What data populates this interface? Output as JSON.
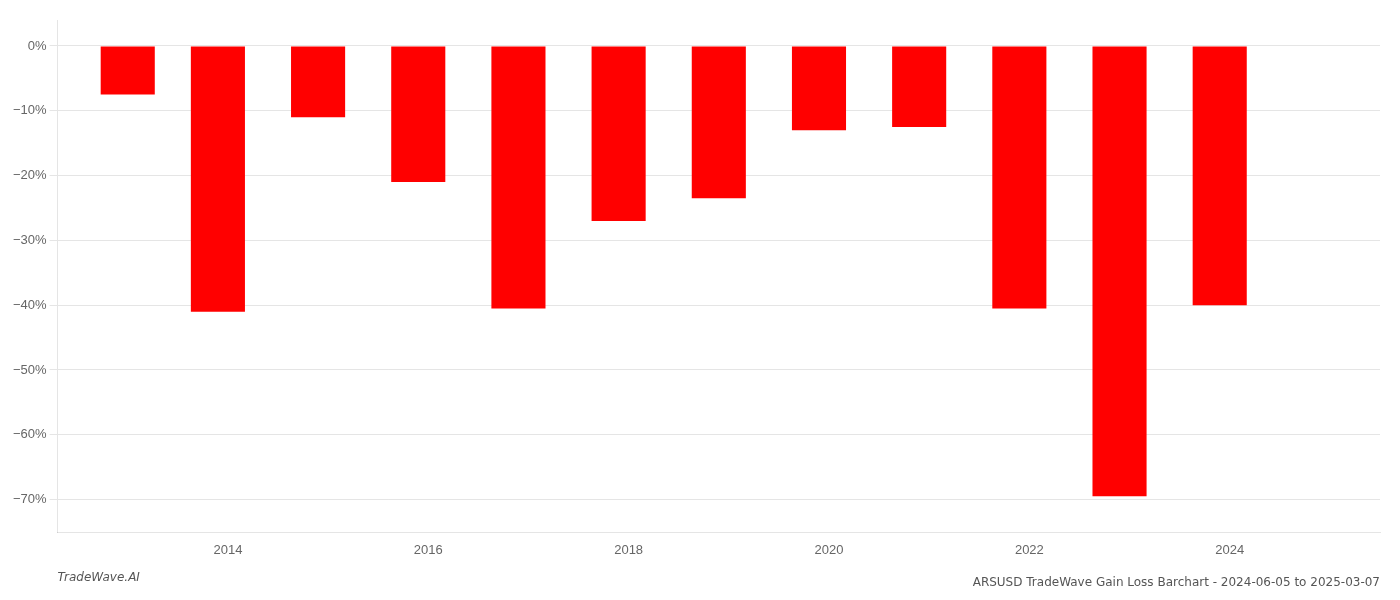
{
  "chart_data": {
    "type": "bar",
    "title": "ARSUSD TradeWave Gain Loss Barchart - 2024-06-05 to 2025-03-07",
    "annotations": [
      "TradeWave.AI"
    ],
    "x": [
      2013.0,
      2013.9,
      2014.9,
      2015.9,
      2016.9,
      2017.9,
      2018.9,
      2019.9,
      2020.9,
      2021.9,
      2022.9,
      2023.9
    ],
    "values": [
      -7.5,
      -41.0,
      -11.0,
      -21.0,
      -40.5,
      -27.0,
      -23.5,
      -13.0,
      -12.5,
      -40.5,
      -69.5,
      -40.0
    ],
    "color": "#ff0000",
    "xlim": [
      2012.3,
      2025.5
    ],
    "xticks": [
      2014,
      2016,
      2018,
      2020,
      2022,
      2024
    ],
    "ylim": [
      -75,
      4
    ],
    "yticks": [
      {
        "value": 0,
        "label": "0%"
      },
      {
        "value": -10,
        "label": "−10%"
      },
      {
        "value": -20,
        "label": "−20%"
      },
      {
        "value": -30,
        "label": "−30%"
      },
      {
        "value": -40,
        "label": "−40%"
      },
      {
        "value": -50,
        "label": "−50%"
      },
      {
        "value": -60,
        "label": "−60%"
      },
      {
        "value": -70,
        "label": "−70%"
      }
    ],
    "grid": "y"
  }
}
